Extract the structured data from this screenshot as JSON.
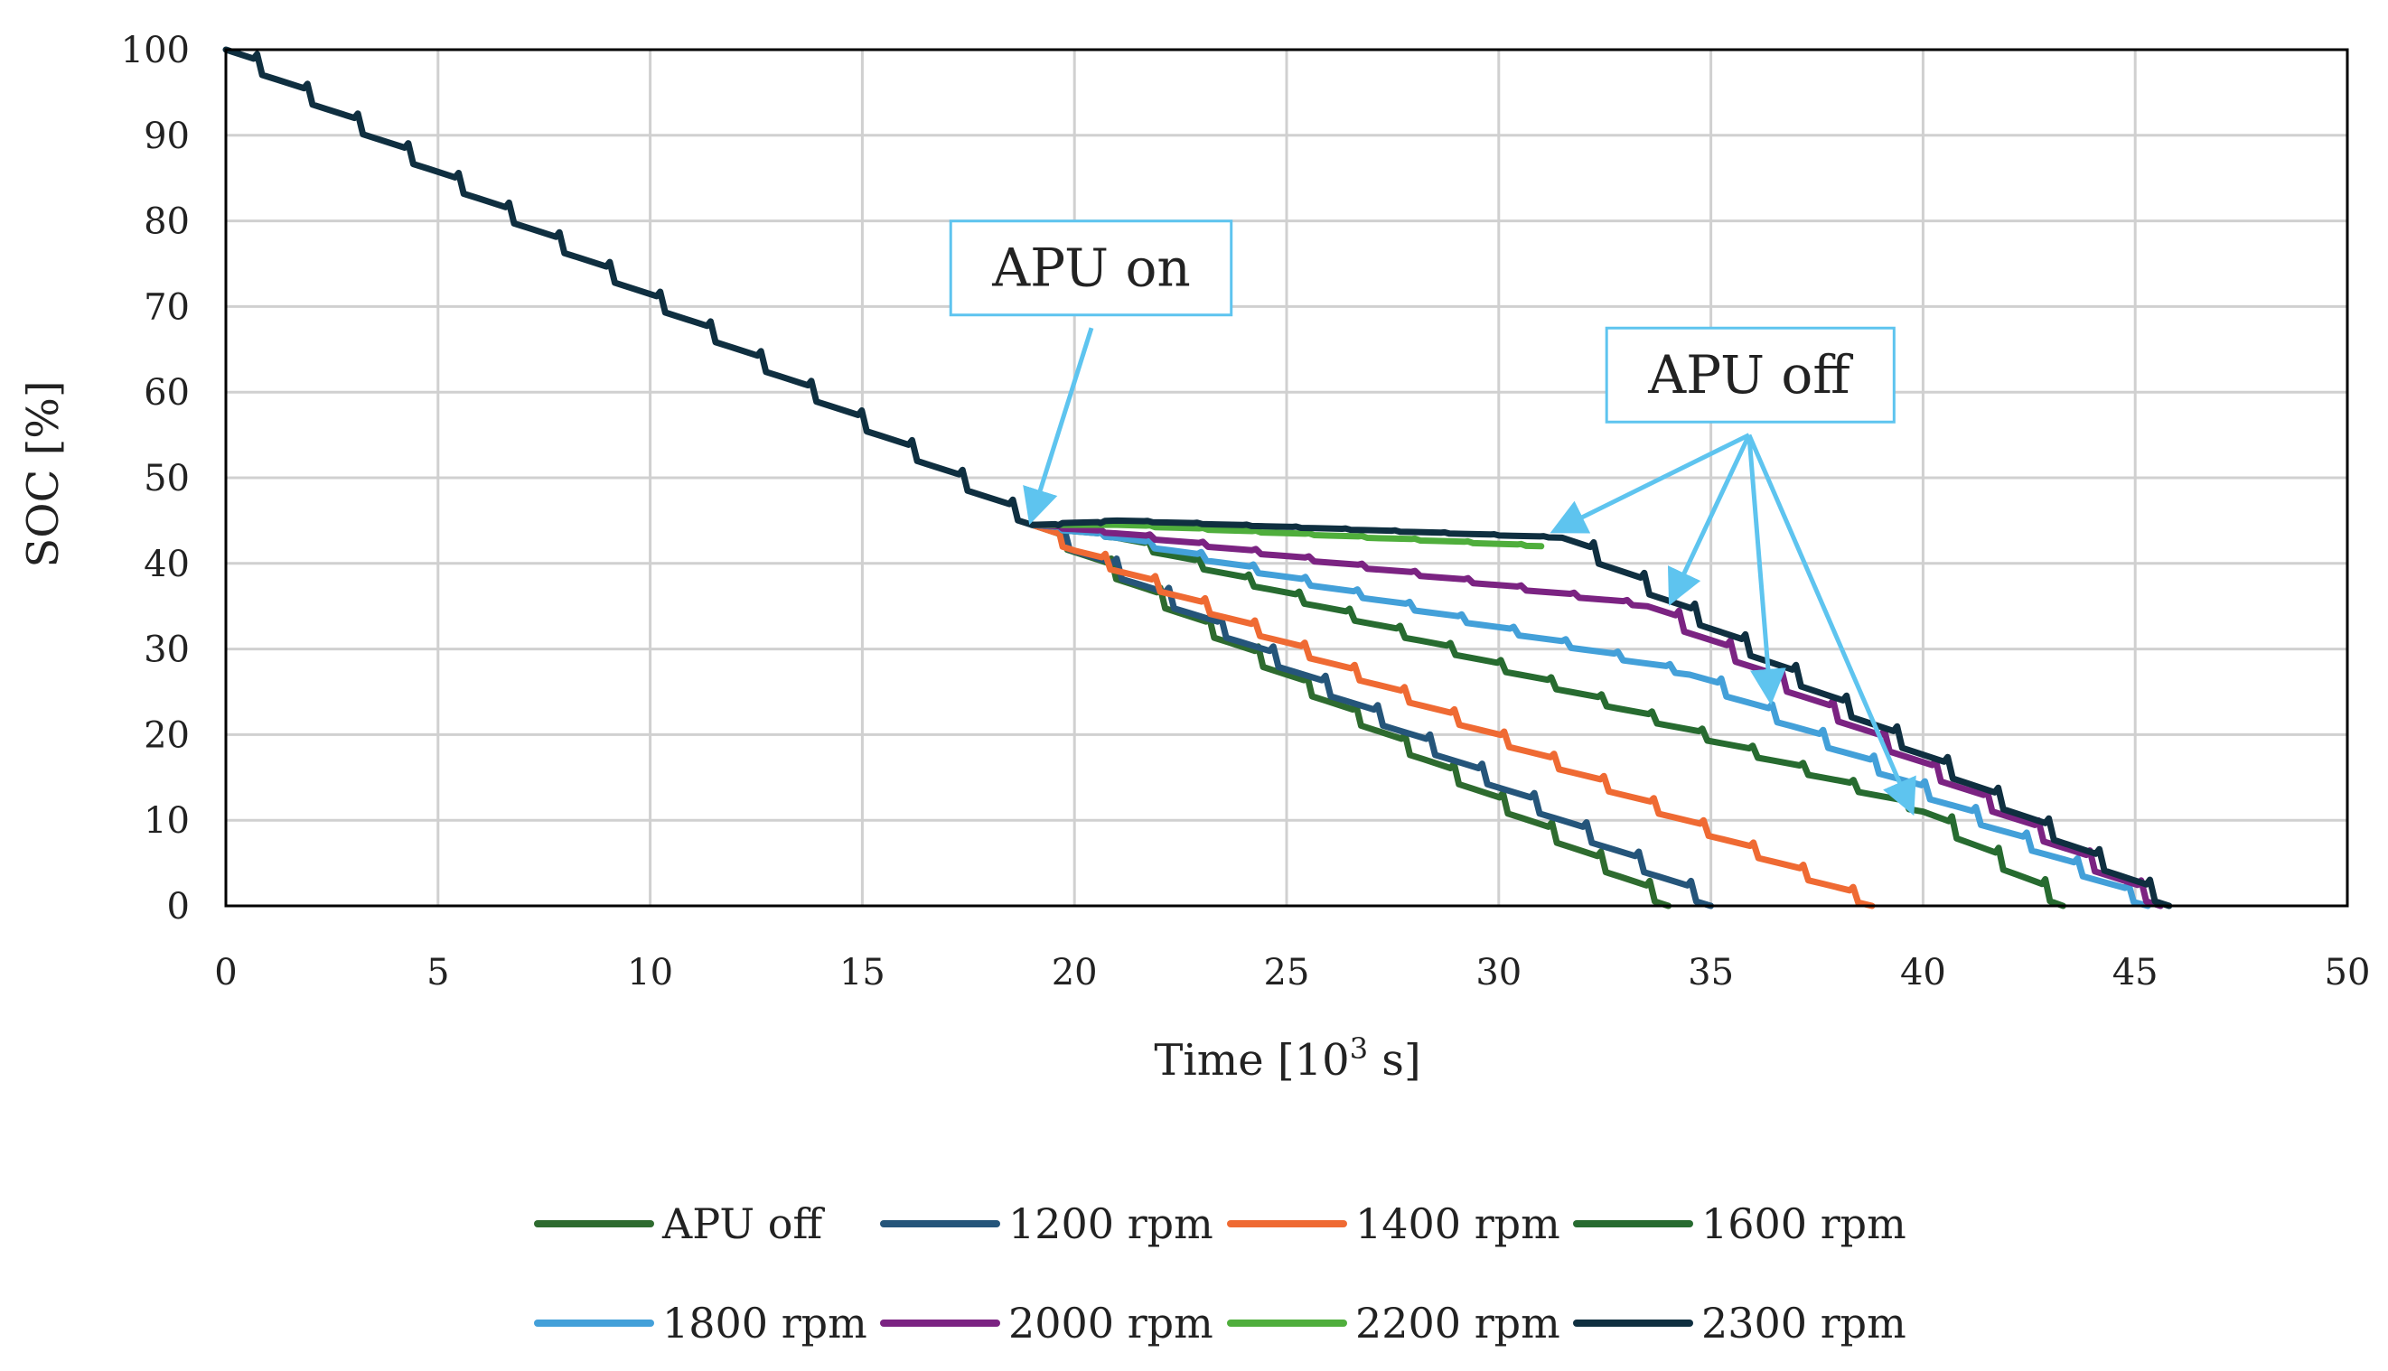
{
  "chart_data": {
    "type": "line",
    "title": "",
    "xlabel_main": "Time [10",
    "xlabel_sup": "3",
    "xlabel_end": " s]",
    "ylabel": "SOC [%]",
    "xlim": [
      0,
      50
    ],
    "ylim": [
      0,
      100
    ],
    "x_ticks": [
      0,
      5,
      10,
      15,
      20,
      25,
      30,
      35,
      40,
      45,
      50
    ],
    "y_ticks": [
      0,
      10,
      20,
      30,
      40,
      50,
      60,
      70,
      80,
      90,
      100
    ],
    "x_tick_labels": [
      "0",
      "5",
      "10",
      "15",
      "20",
      "25",
      "30",
      "35",
      "40",
      "45",
      "50"
    ],
    "y_tick_labels": [
      "0",
      "10",
      "20",
      "30",
      "40",
      "50",
      "60",
      "70",
      "80",
      "90",
      "100"
    ],
    "grid": true,
    "legend_position": "bottom",
    "common_discharge": {
      "start": [
        0,
        100
      ],
      "end": [
        19.0,
        44.5
      ],
      "step_period": 1.2
    },
    "series": [
      {
        "name": "APU off",
        "color": "#2e6b2f",
        "points": [
          [
            19.0,
            44.5
          ],
          [
            34.0,
            0
          ]
        ]
      },
      {
        "name": "1200 rpm",
        "color": "#25557a",
        "points": [
          [
            19.0,
            44.5
          ],
          [
            35.0,
            0
          ]
        ]
      },
      {
        "name": "1400 rpm",
        "color": "#ef6a33",
        "points": [
          [
            19.0,
            44.5
          ],
          [
            20.0,
            41.5
          ],
          [
            38.8,
            0
          ]
        ]
      },
      {
        "name": "1600 rpm",
        "color": "#276b30",
        "points": [
          [
            19.0,
            44.5
          ],
          [
            21.0,
            43.0
          ],
          [
            40.0,
            11.0
          ],
          [
            43.3,
            0
          ]
        ]
      },
      {
        "name": "1800 rpm",
        "color": "#43a0d9",
        "points": [
          [
            19.0,
            44.5
          ],
          [
            21.0,
            43.0
          ],
          [
            34.5,
            27.0
          ],
          [
            45.3,
            0
          ]
        ]
      },
      {
        "name": "2000 rpm",
        "color": "#7b2382",
        "points": [
          [
            19.0,
            44.5
          ],
          [
            21.0,
            43.5
          ],
          [
            33.5,
            35.0
          ],
          [
            45.6,
            0
          ]
        ]
      },
      {
        "name": "2200 rpm",
        "color": "#4fae3c",
        "points": [
          [
            19.0,
            44.5
          ],
          [
            21.0,
            44.5
          ],
          [
            31.0,
            42.0
          ]
        ]
      },
      {
        "name": "2300 rpm",
        "color": "#0f2f40",
        "points": [
          [
            19.0,
            44.5
          ],
          [
            21.0,
            45.0
          ],
          [
            31.5,
            43.0
          ],
          [
            45.8,
            0
          ]
        ]
      }
    ],
    "annotations": [
      {
        "text": "APU on",
        "box_anchor": [
          20.4,
          74.5
        ],
        "arrow_from": [
          20.4,
          67.5
        ],
        "arrow_to": [
          19.0,
          45.5
        ]
      },
      {
        "text": "APU off",
        "box_anchor": [
          35.9,
          62.0
        ],
        "arrow_from": [
          35.9,
          55.0
        ],
        "arrow_targets": [
          [
            31.4,
            44.0
          ],
          [
            34.1,
            36.0
          ],
          [
            36.4,
            24.5
          ],
          [
            39.7,
            11.5
          ]
        ]
      }
    ]
  },
  "colors": {
    "grid": "#d0d0d0",
    "frame": "#000000",
    "callout": "#5ec4ef",
    "text": "#222222"
  }
}
